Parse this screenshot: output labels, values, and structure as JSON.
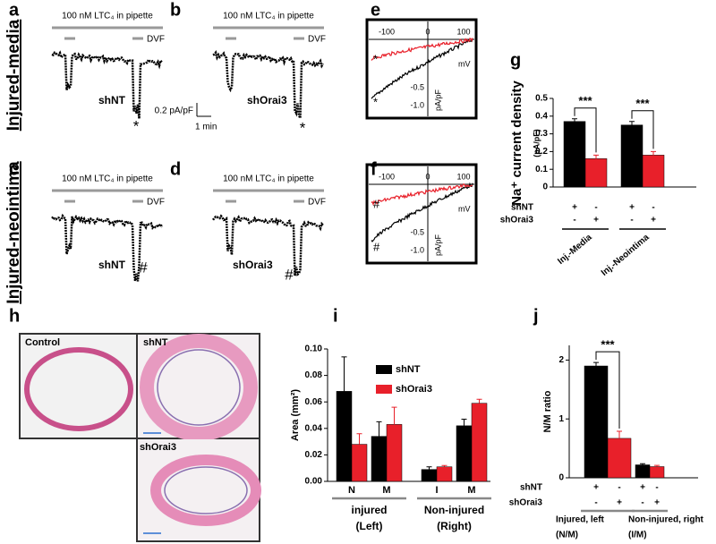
{
  "row_labels": [
    "Injured-media",
    "Injured-neointima"
  ],
  "panel_letters": [
    "a",
    "b",
    "c",
    "d",
    "e",
    "f",
    "g",
    "h",
    "i",
    "j"
  ],
  "traces": [
    {
      "pipette": "100 nM LTC₄ in pipette",
      "drug": "DVF",
      "condition": "shNT",
      "marker": "*"
    },
    {
      "pipette": "100 nM LTC₄ in pipette",
      "drug": "DVF",
      "condition": "shOrai3",
      "marker": "*"
    },
    {
      "pipette": "100 nM LTC₄ in pipette",
      "drug": "DVF",
      "condition": "shNT",
      "marker": "#"
    },
    {
      "pipette": "100 nM LTC₄ in pipette",
      "drug": "DVF",
      "condition": "shOrai3",
      "marker": "#"
    }
  ],
  "scale_bar": {
    "y": "0.2 pA/pF",
    "x": "1 min"
  },
  "iv_panels": [
    {
      "x_ticks": [
        "-100",
        "0",
        "100"
      ],
      "y_ticks": [
        "-0.5",
        "-1.0"
      ],
      "x_unit": "mV",
      "y_unit": "pA/pF",
      "marker": "*"
    },
    {
      "x_ticks": [
        "-100",
        "0",
        "100"
      ],
      "y_ticks": [
        "-0.5",
        "-1.0"
      ],
      "x_unit": "mV",
      "y_unit": "pA/pF",
      "marker": "#"
    }
  ],
  "histology": [
    "Control",
    "shNT",
    "shOrai3"
  ],
  "chart_data": [
    {
      "type": "bar",
      "y_label": "Na⁺ current density",
      "y_unit_label": "(pA/pF)",
      "categories": [
        "Inj.-Media",
        "Inj.-Neointima"
      ],
      "ylim": [
        0,
        0.5
      ],
      "yticks": [
        0,
        0.1,
        0.2,
        0.3,
        0.4,
        0.5
      ],
      "series": [
        {
          "name": "shNT",
          "color": "#000000",
          "values": [
            0.37,
            0.35
          ],
          "errors": [
            0.015,
            0.02
          ]
        },
        {
          "name": "shOrai3",
          "color": "#e8202a",
          "values": [
            0.16,
            0.18
          ],
          "errors": [
            0.02,
            0.02
          ]
        }
      ],
      "condition_signs": [
        [
          "+",
          "-",
          "+",
          "-"
        ],
        [
          "-",
          "+",
          "-",
          "+"
        ]
      ],
      "significance": [
        "***",
        "***"
      ]
    },
    {
      "type": "bar",
      "y_label": "Area (mm²)",
      "categories": [
        "N",
        "M",
        "I",
        "M"
      ],
      "groups": [
        "injured",
        "Non-injured"
      ],
      "group_sublabels": [
        "(Left)",
        "(Right)"
      ],
      "ylim": [
        0,
        0.1
      ],
      "yticks": [
        {
          "value": 0,
          "label": "0.00"
        },
        {
          "value": 0.02,
          "label": "0.02"
        },
        {
          "value": 0.04,
          "label": "0.04"
        },
        {
          "value": 0.06,
          "label": "0.06"
        },
        {
          "value": 0.08,
          "label": "0.08"
        },
        {
          "value": 0.1,
          "label": "0.10"
        }
      ],
      "legend": "upper right",
      "series": [
        {
          "name": "shNT",
          "color": "#000000",
          "values": [
            0.068,
            0.034,
            0.009,
            0.042
          ],
          "errors": [
            0.026,
            0.011,
            0.002,
            0.005
          ]
        },
        {
          "name": "shOrai3",
          "color": "#e8202a",
          "values": [
            0.028,
            0.043,
            0.011,
            0.059
          ],
          "errors": [
            0.008,
            0.013,
            0.001,
            0.003
          ]
        }
      ]
    },
    {
      "type": "bar",
      "y_label": "N/M ratio",
      "categories": [
        "Injured, left",
        "Non-injured, right"
      ],
      "category_sublabels": [
        "(N/M)",
        "(I/M)"
      ],
      "ylim": [
        0,
        2.25
      ],
      "yticks": [
        0,
        1,
        2
      ],
      "series": [
        {
          "name": "shNT",
          "color": "#000000",
          "values": [
            1.9,
            0.22
          ],
          "errors": [
            0.06,
            0.02
          ]
        },
        {
          "name": "shOrai3",
          "color": "#e8202a",
          "values": [
            0.67,
            0.19
          ],
          "errors": [
            0.12,
            0.02
          ]
        }
      ],
      "condition_signs": [
        [
          "+",
          "-",
          "+",
          "-"
        ],
        [
          "-",
          "+",
          "-",
          "+"
        ]
      ],
      "significance": [
        "***",
        null
      ]
    }
  ]
}
